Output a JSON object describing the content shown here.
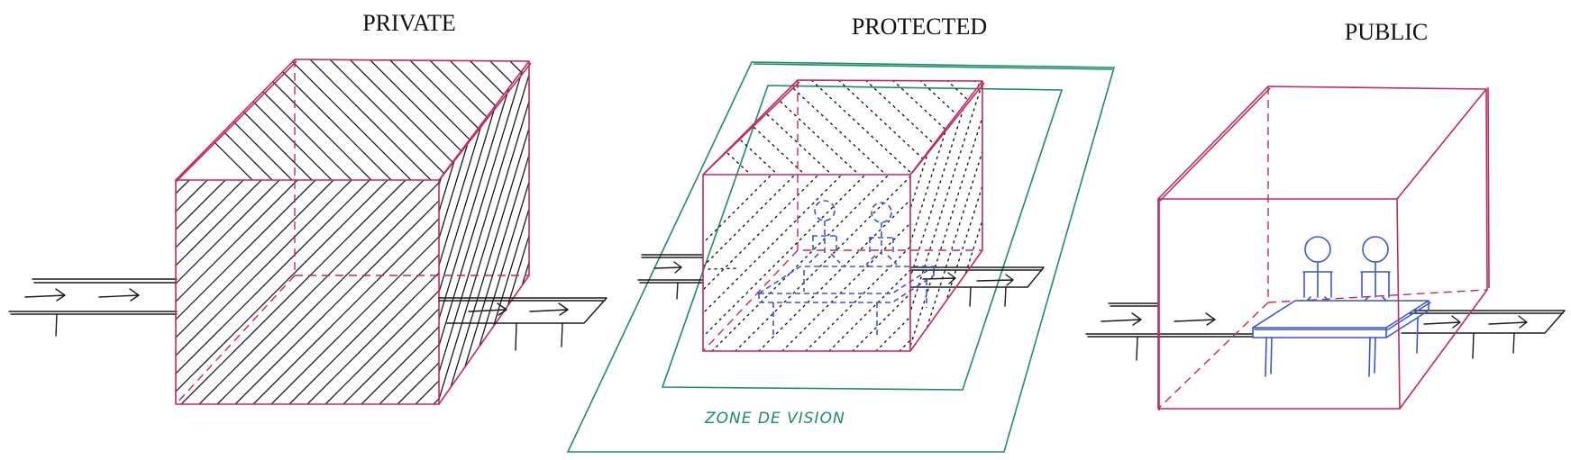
{
  "panels": [
    {
      "title": "PRIVATE"
    },
    {
      "title": "PROTECTED"
    },
    {
      "title": "PUBLIC"
    }
  ],
  "zone_label": "ZONE DE VISION",
  "colors": {
    "box": "#c4295a",
    "zone": "#1a8f60",
    "people": "#3a56d4",
    "ink": "#1a1a1a"
  }
}
